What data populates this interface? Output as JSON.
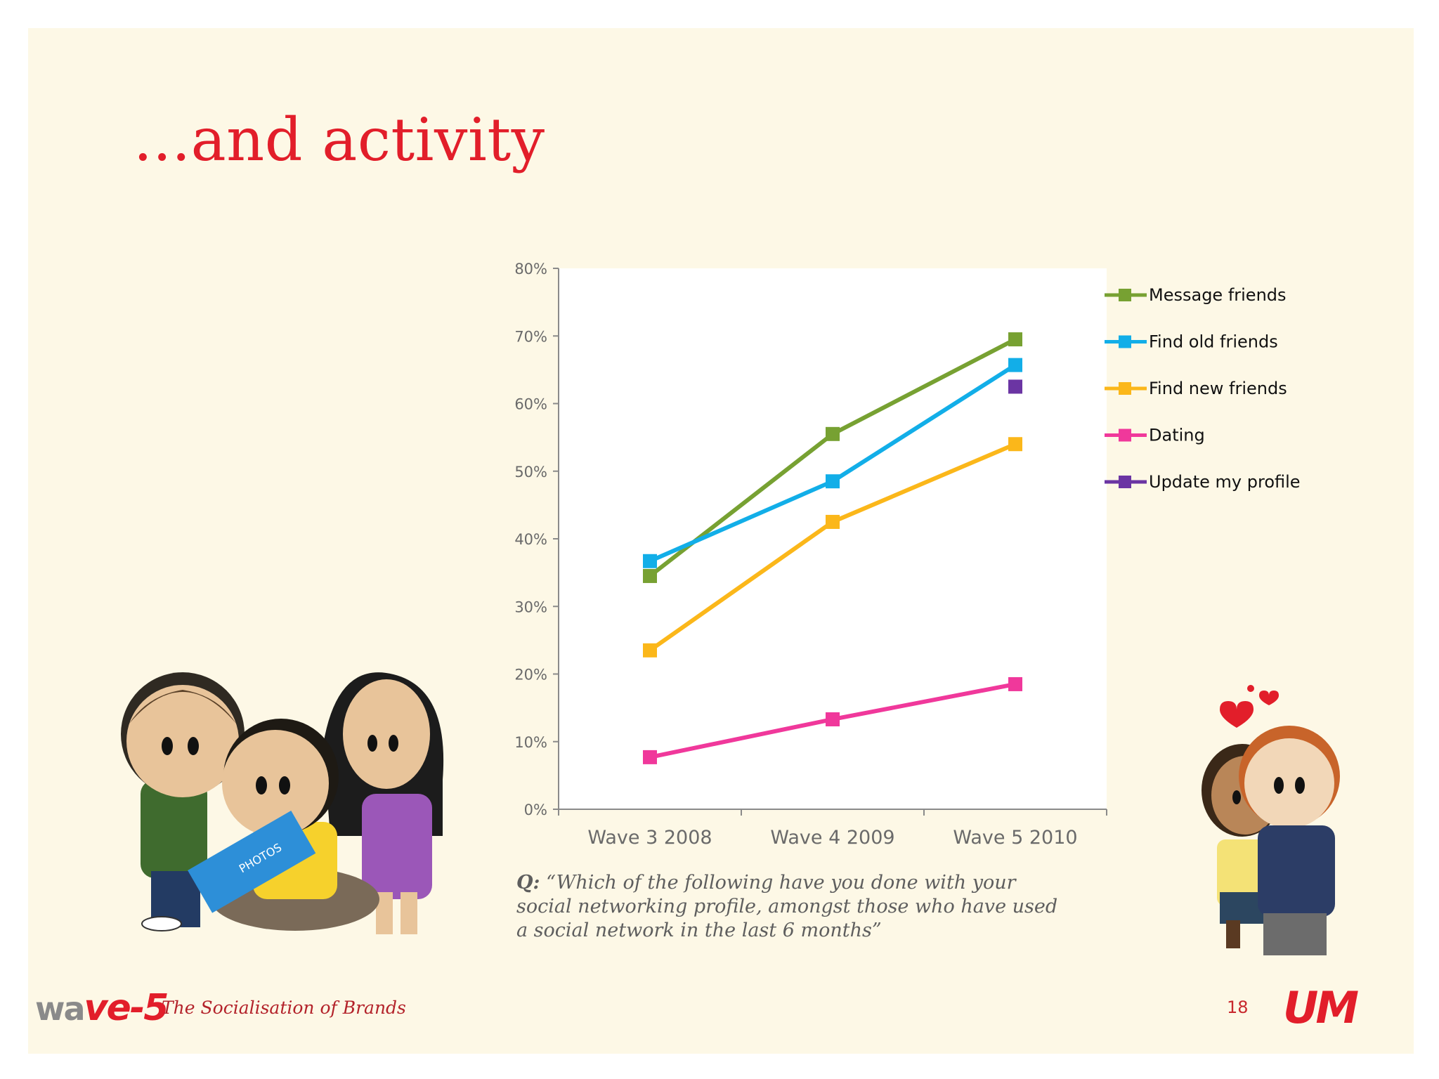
{
  "slide": {
    "title": "...and activity",
    "question_prefix": "Q:",
    "question_text": "“Which of the following have you done with your social networking profile, amongst those who have used a social network in the last 6 months”",
    "footer_tagline": "The Socialisation of Brands",
    "page_number": "18",
    "logo_left_main": "wa",
    "logo_left_ve": "ve",
    "logo_left_num": "-5",
    "logo_right": "UM",
    "illustration_book_label": "PHOTOS"
  },
  "colors": {
    "background": "#fdf8e6",
    "plot_background": "#ffffff",
    "title": "#e21e2a",
    "axis": "#8a8a8a"
  },
  "chart_data": {
    "type": "line",
    "categories": [
      "Wave 3 2008",
      "Wave 4 2009",
      "Wave 5 2010"
    ],
    "ylim": [
      0,
      0.8
    ],
    "yticks": [
      "0%",
      "10%",
      "20%",
      "30%",
      "40%",
      "50%",
      "60%",
      "70%",
      "80%"
    ],
    "ytick_values": [
      0,
      0.1,
      0.2,
      0.3,
      0.4,
      0.5,
      0.6,
      0.7,
      0.8
    ],
    "grid": false,
    "legend_position": "right",
    "series": [
      {
        "name": "Message friends",
        "color": "#77a132",
        "values": [
          0.345,
          0.555,
          0.695
        ]
      },
      {
        "name": "Find old friends",
        "color": "#12aee8",
        "values": [
          0.367,
          0.485,
          0.657
        ]
      },
      {
        "name": "Find new friends",
        "color": "#fbb71a",
        "values": [
          0.235,
          0.425,
          0.54
        ]
      },
      {
        "name": "Dating",
        "color": "#f0389b",
        "values": [
          0.077,
          0.133,
          0.185
        ]
      },
      {
        "name": "Update my profile",
        "color": "#6b35a3",
        "values": [
          null,
          null,
          0.625
        ]
      }
    ]
  }
}
